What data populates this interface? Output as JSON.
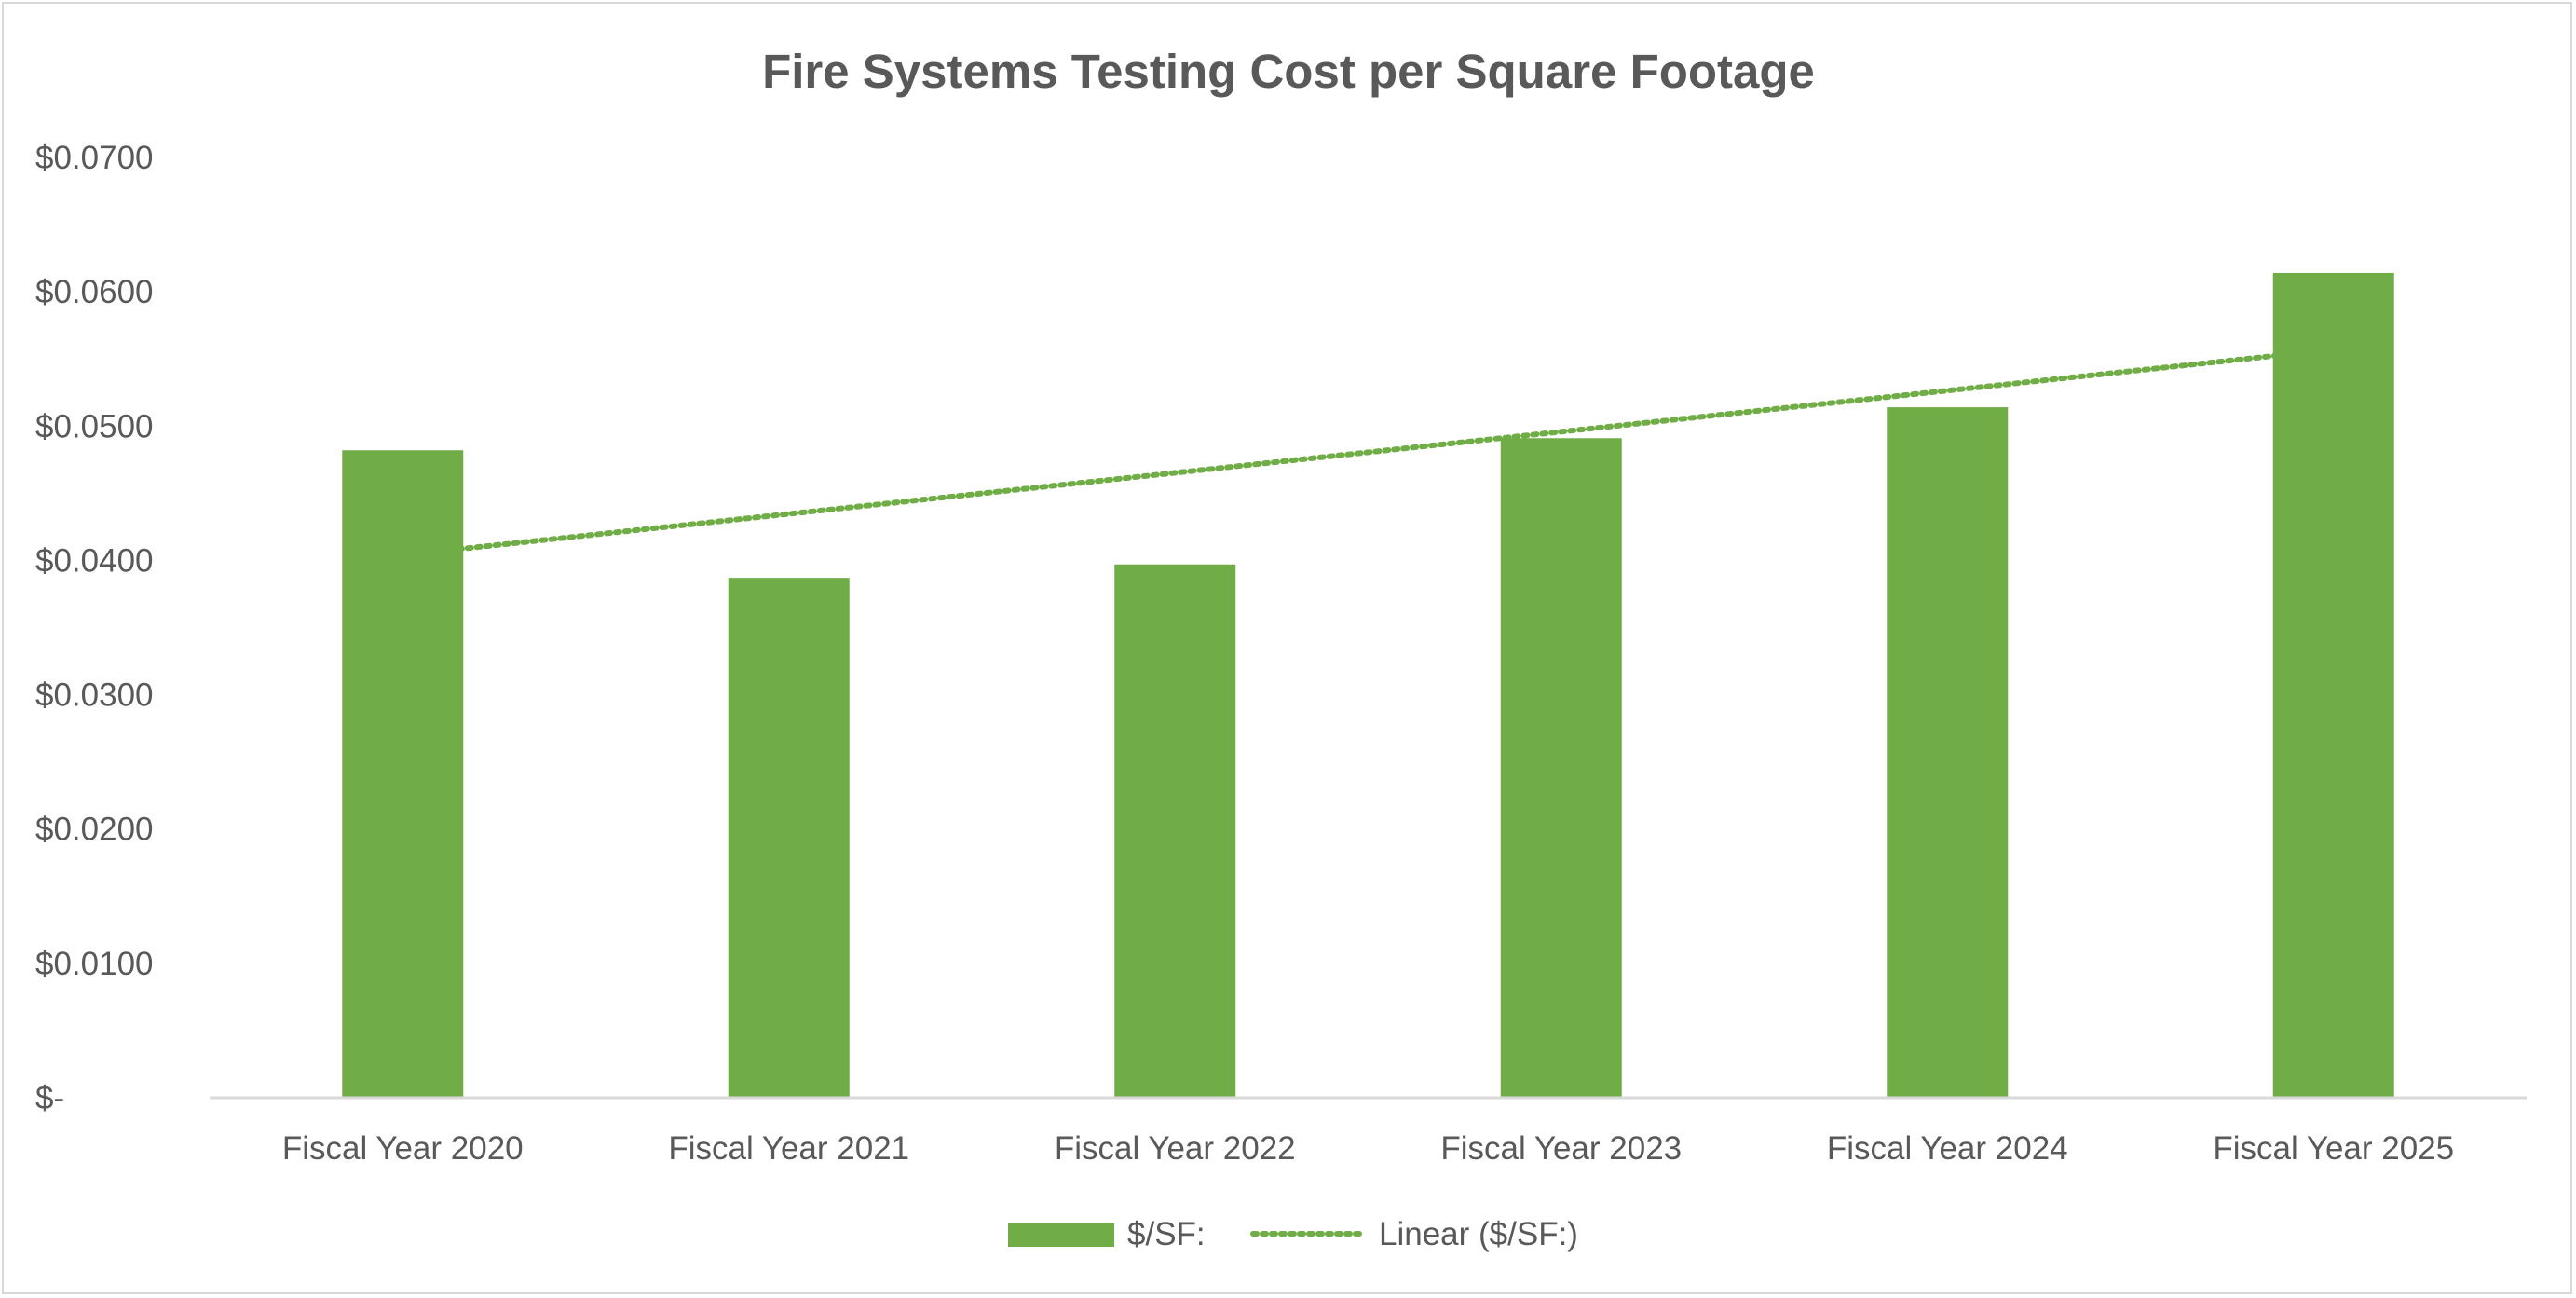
{
  "chart_data": {
    "type": "bar",
    "title": "Fire Systems Testing Cost per Square Footage",
    "xlabel": "",
    "ylabel": "",
    "categories": [
      "Fiscal Year 2020",
      "Fiscal Year 2021",
      "Fiscal Year 2022",
      "Fiscal Year 2023",
      "Fiscal Year 2024",
      "Fiscal Year 2025"
    ],
    "series": [
      {
        "name": "$/SF:",
        "values": [
          0.0482,
          0.0387,
          0.0397,
          0.0491,
          0.0514,
          0.0614
        ],
        "color": "#70ad47"
      }
    ],
    "trendline": {
      "name": "Linear ($/SF:)",
      "type": "linear",
      "style": "dotted",
      "color": "#70ad47",
      "start": 0.0404,
      "end": 0.0557
    },
    "ylim": [
      0,
      0.07
    ],
    "yticks": [
      0,
      0.01,
      0.02,
      0.03,
      0.04,
      0.05,
      0.06,
      0.07
    ],
    "ytick_labels": [
      "$-",
      "$0.0100",
      "$0.0200",
      "$0.0300",
      "$0.0400",
      "$0.0500",
      "$0.0600",
      "$0.0700"
    ],
    "grid": false,
    "legend": "bottom"
  }
}
